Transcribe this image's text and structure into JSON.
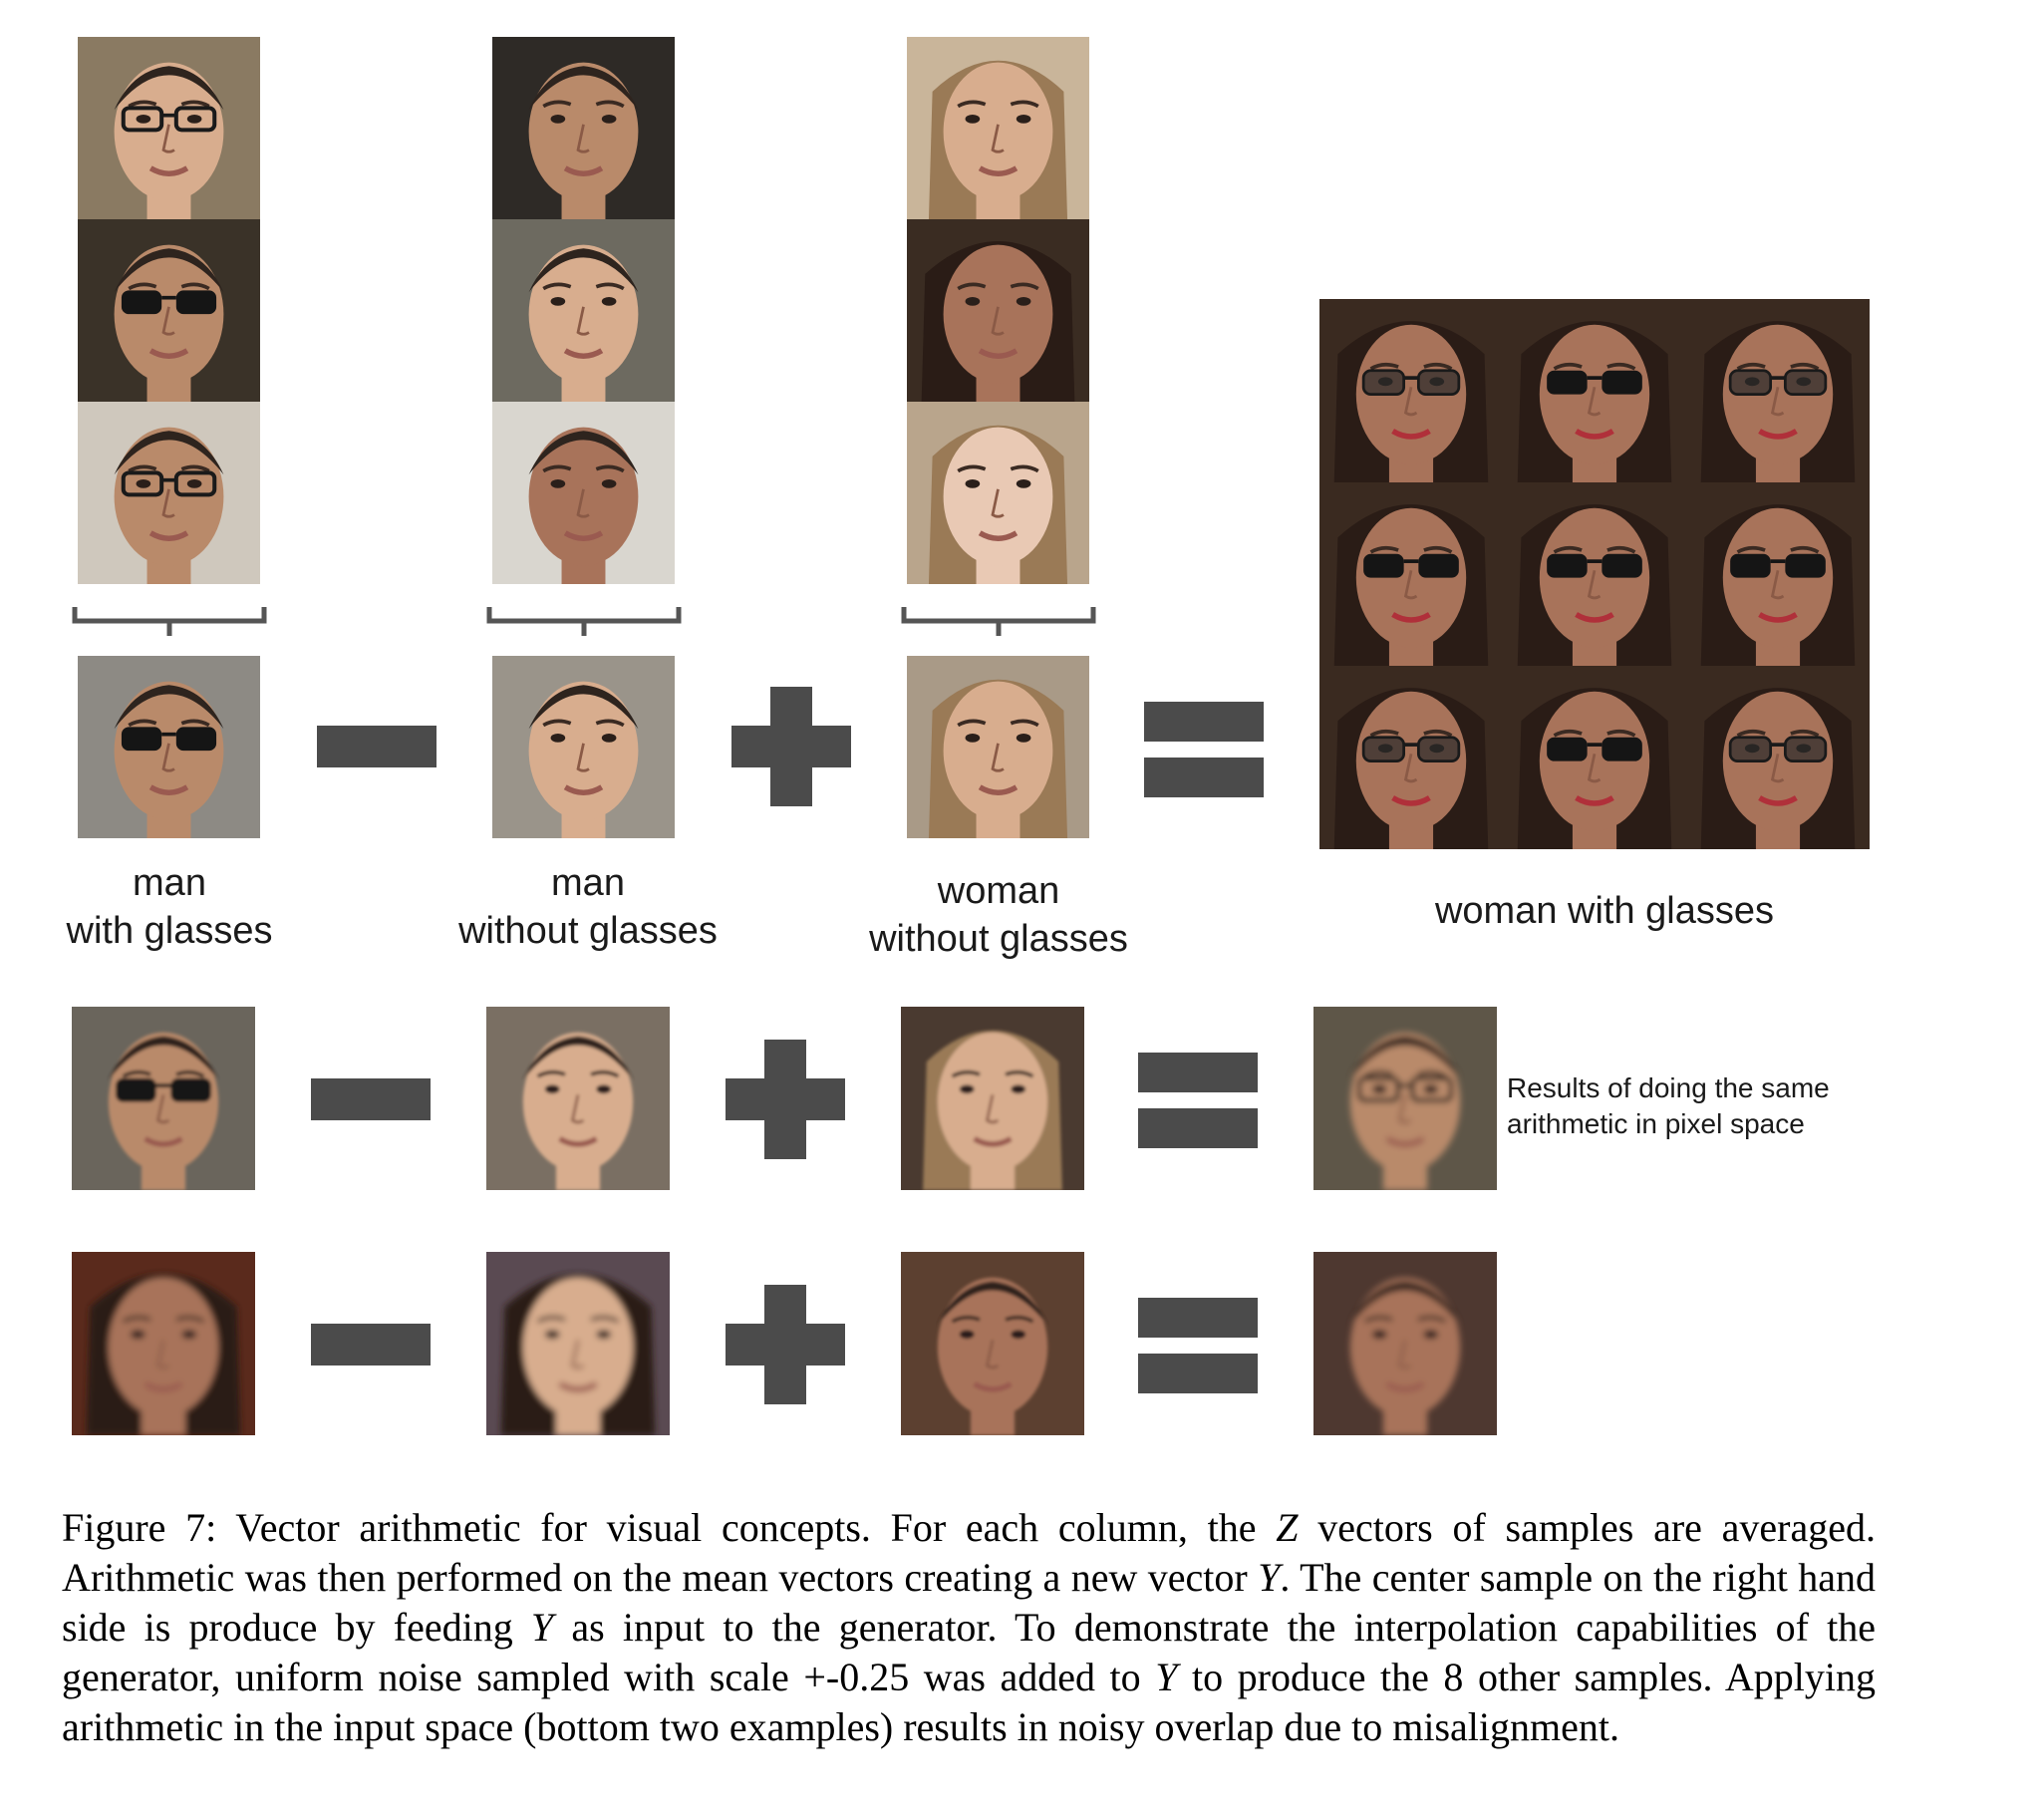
{
  "figure": {
    "groups": [
      {
        "label_line1": "man",
        "label_line2": "with glasses"
      },
      {
        "label_line1": "man",
        "label_line2": "without glasses"
      },
      {
        "label_line1": "woman",
        "label_line2": "without glasses"
      }
    ],
    "result_label": "woman with glasses",
    "pixel_space_note_line1": "Results of doing the same",
    "pixel_space_note_line2": "arithmetic in pixel space",
    "operators": [
      "minus",
      "plus",
      "equals"
    ]
  },
  "caption": {
    "prefix": "Figure 7:",
    "part1": " Vector arithmetic for visual concepts.  For each column, the ",
    "var_z": "Z",
    "part2": " vectors of samples are averaged. Arithmetic was then performed on the mean vectors creating a new vector ",
    "var_y1": "Y",
    "part3": ". The center sample on the right hand side is produce by feeding ",
    "var_y2": "Y",
    "part4": " as input to the generator.  To demonstrate the interpolation capabilities of the generator, uniform noise sampled with scale +-0.25 was added to ",
    "var_y3": "Y",
    "part5": " to produce the 8 other samples. Applying arithmetic in the input space (bottom two examples) results in noisy overlap due to misalignment."
  },
  "colors": {
    "operator": "#4b4b4b",
    "bracket": "#555555",
    "text": "#1a1a1a"
  }
}
